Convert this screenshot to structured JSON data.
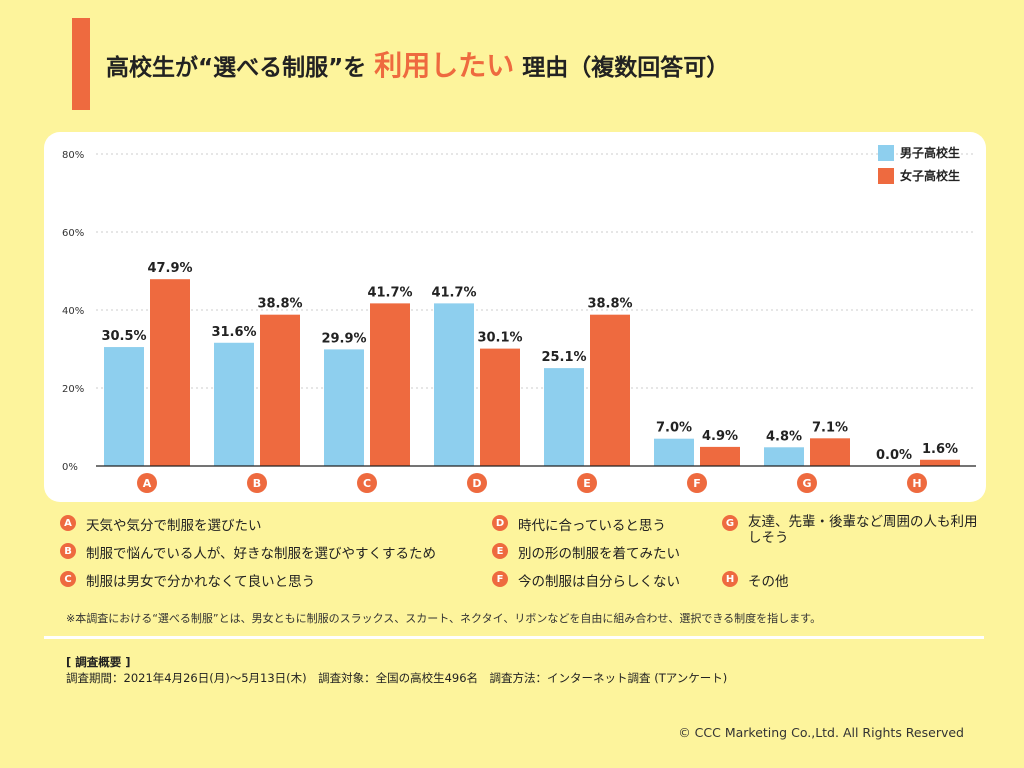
{
  "header": {
    "title_prefix": "高校生が“選べる制服”を",
    "title_highlight": "利用したい",
    "title_suffix": "理由（複数回答可）"
  },
  "colors": {
    "male": "#8ecfee",
    "female": "#ee6a3f",
    "accent": "#ee6a3f",
    "background": "#fdf49c"
  },
  "chart_data": {
    "type": "bar",
    "categories": [
      "A",
      "B",
      "C",
      "D",
      "E",
      "F",
      "G",
      "H"
    ],
    "series": [
      {
        "name": "男子高校生",
        "values": [
          30.5,
          31.6,
          29.9,
          41.7,
          25.1,
          7.0,
          4.8,
          0.0
        ],
        "labels": [
          "30.5%",
          "31.6%",
          "29.9%",
          "41.7%",
          "25.1%",
          "7.0%",
          "4.8%",
          "0.0%"
        ]
      },
      {
        "name": "女子高校生",
        "values": [
          47.9,
          38.8,
          41.7,
          30.1,
          38.8,
          4.9,
          7.1,
          1.6
        ],
        "labels": [
          "47.9%",
          "38.8%",
          "41.7%",
          "30.1%",
          "38.8%",
          "4.9%",
          "7.1%",
          "1.6%"
        ]
      }
    ],
    "yticks": [
      "0%",
      "20%",
      "40%",
      "60%",
      "80%"
    ],
    "ylim": [
      0,
      80
    ],
    "grid": true,
    "legend_position": "top-right"
  },
  "notes": [
    {
      "key": "A",
      "text": "天気や気分で制服を選びたい"
    },
    {
      "key": "B",
      "text": "制服で悩んでいる人が、好きな制服を選びやすくするため"
    },
    {
      "key": "C",
      "text": "制服は男女で分かれなくて良いと思う"
    },
    {
      "key": "D",
      "text": "時代に合っていると思う"
    },
    {
      "key": "E",
      "text": "別の形の制服を着てみたい"
    },
    {
      "key": "F",
      "text": "今の制服は自分らしくない"
    },
    {
      "key": "G",
      "text": "友達、先輩・後輩など周囲の人も利用しそう"
    },
    {
      "key": "H",
      "text": "その他"
    }
  ],
  "footnote": "※本調査における“選べる制服”とは、男女ともに制服のスラックス、スカート、ネクタイ、リボンなどを自由に組み合わせ、選択できる制度を指します。",
  "survey": {
    "heading": "[ 調査概要 ]",
    "details": "調査期間：2021年4月26日(月)〜5月13日(木)　調査対象：全国の高校生496名　調査方法：インターネット調査 (Tアンケート)"
  },
  "copyright": "© CCC Marketing Co.,Ltd. All Rights Reserved"
}
